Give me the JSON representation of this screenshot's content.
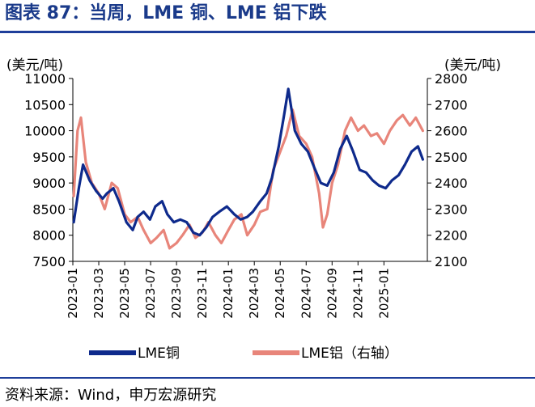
{
  "header": {
    "title": "图表 87：当周，LME 铜、LME 铝下跌"
  },
  "footer": {
    "source": "资料来源：Wind，申万宏源研究"
  },
  "colors": {
    "copper": "#0e2a8c",
    "aluminum": "#e8857a",
    "rule": "#1f3f9a",
    "axis": "#000000"
  },
  "chart_data": {
    "type": "line",
    "title": "当周，LME 铜、LME 铝下跌",
    "ylabel_left": "(美元/吨)",
    "ylabel_right": "(美元/吨)",
    "ylim_left": [
      7500,
      11000
    ],
    "ylim_right": [
      2100,
      2800
    ],
    "yticks_left": [
      "7500",
      "8000",
      "8500",
      "9000",
      "9500",
      "10000",
      "10500",
      "11000"
    ],
    "yticks_right": [
      "2100",
      "2200",
      "2300",
      "2400",
      "2500",
      "2600",
      "2700",
      "2800"
    ],
    "x_range": [
      "2023-01",
      "2025-04"
    ],
    "xticks": [
      "2023-01",
      "2023-03",
      "2023-05",
      "2023-07",
      "2023-09",
      "2023-11",
      "2024-01",
      "2024-03",
      "2024-05",
      "2024-07",
      "2024-09",
      "2024-11",
      "2025-01"
    ],
    "legend_position": "bottom",
    "series": [
      {
        "name": "LME铜",
        "axis": "left",
        "x": [
          "2023-01-03",
          "2023-01-15",
          "2023-01-25",
          "2023-02-10",
          "2023-02-25",
          "2023-03-10",
          "2023-03-20",
          "2023-04-05",
          "2023-04-18",
          "2023-05-05",
          "2023-05-20",
          "2023-06-01",
          "2023-06-15",
          "2023-06-30",
          "2023-07-12",
          "2023-07-28",
          "2023-08-10",
          "2023-08-25",
          "2023-09-10",
          "2023-09-25",
          "2023-10-10",
          "2023-10-25",
          "2023-11-10",
          "2023-11-25",
          "2023-12-10",
          "2023-12-28",
          "2024-01-15",
          "2024-01-30",
          "2024-02-15",
          "2024-02-28",
          "2024-03-15",
          "2024-03-30",
          "2024-04-12",
          "2024-04-28",
          "2024-05-10",
          "2024-05-20",
          "2024-06-05",
          "2024-06-20",
          "2024-07-05",
          "2024-07-20",
          "2024-08-05",
          "2024-08-20",
          "2024-09-05",
          "2024-09-20",
          "2024-10-05",
          "2024-10-20",
          "2024-11-05",
          "2024-11-20",
          "2024-12-05",
          "2024-12-20",
          "2025-01-05",
          "2025-01-20",
          "2025-02-05",
          "2025-02-20",
          "2025-03-05",
          "2025-03-20",
          "2025-04-01"
        ],
        "values": [
          8250,
          8900,
          9350,
          9050,
          8850,
          8700,
          8800,
          8900,
          8650,
          8250,
          8100,
          8350,
          8450,
          8300,
          8550,
          8650,
          8400,
          8250,
          8300,
          8250,
          8050,
          8000,
          8150,
          8350,
          8450,
          8550,
          8400,
          8300,
          8350,
          8450,
          8650,
          8800,
          9100,
          9700,
          10300,
          10800,
          10000,
          9750,
          9600,
          9300,
          9000,
          8950,
          9200,
          9650,
          9900,
          9600,
          9250,
          9200,
          9050,
          8950,
          8900,
          9050,
          9150,
          9350,
          9600,
          9700,
          9450
        ]
      },
      {
        "name": "LME铝（右轴）",
        "axis": "right",
        "x": [
          "2023-01-03",
          "2023-01-12",
          "2023-01-20",
          "2023-02-01",
          "2023-02-15",
          "2023-03-01",
          "2023-03-15",
          "2023-04-01",
          "2023-04-15",
          "2023-05-01",
          "2023-05-15",
          "2023-06-01",
          "2023-06-15",
          "2023-07-01",
          "2023-07-15",
          "2023-08-01",
          "2023-08-15",
          "2023-09-01",
          "2023-09-15",
          "2023-10-01",
          "2023-10-15",
          "2023-11-01",
          "2023-11-15",
          "2023-12-01",
          "2023-12-15",
          "2024-01-01",
          "2024-01-15",
          "2024-02-01",
          "2024-02-15",
          "2024-03-01",
          "2024-03-15",
          "2024-04-01",
          "2024-04-15",
          "2024-05-01",
          "2024-05-15",
          "2024-05-30",
          "2024-06-15",
          "2024-07-01",
          "2024-07-15",
          "2024-08-01",
          "2024-08-10",
          "2024-08-20",
          "2024-09-01",
          "2024-09-15",
          "2024-10-01",
          "2024-10-15",
          "2024-11-01",
          "2024-11-15",
          "2024-12-01",
          "2024-12-15",
          "2025-01-01",
          "2025-01-15",
          "2025-02-01",
          "2025-02-15",
          "2025-03-01",
          "2025-03-15",
          "2025-04-01"
        ],
        "values": [
          2350,
          2600,
          2650,
          2480,
          2400,
          2360,
          2300,
          2400,
          2380,
          2280,
          2250,
          2270,
          2220,
          2170,
          2190,
          2220,
          2150,
          2170,
          2200,
          2240,
          2190,
          2210,
          2250,
          2200,
          2170,
          2220,
          2260,
          2280,
          2200,
          2240,
          2290,
          2300,
          2450,
          2520,
          2580,
          2680,
          2580,
          2550,
          2500,
          2360,
          2230,
          2280,
          2400,
          2470,
          2600,
          2650,
          2600,
          2620,
          2580,
          2590,
          2550,
          2600,
          2640,
          2660,
          2620,
          2650,
          2600
        ]
      }
    ]
  }
}
